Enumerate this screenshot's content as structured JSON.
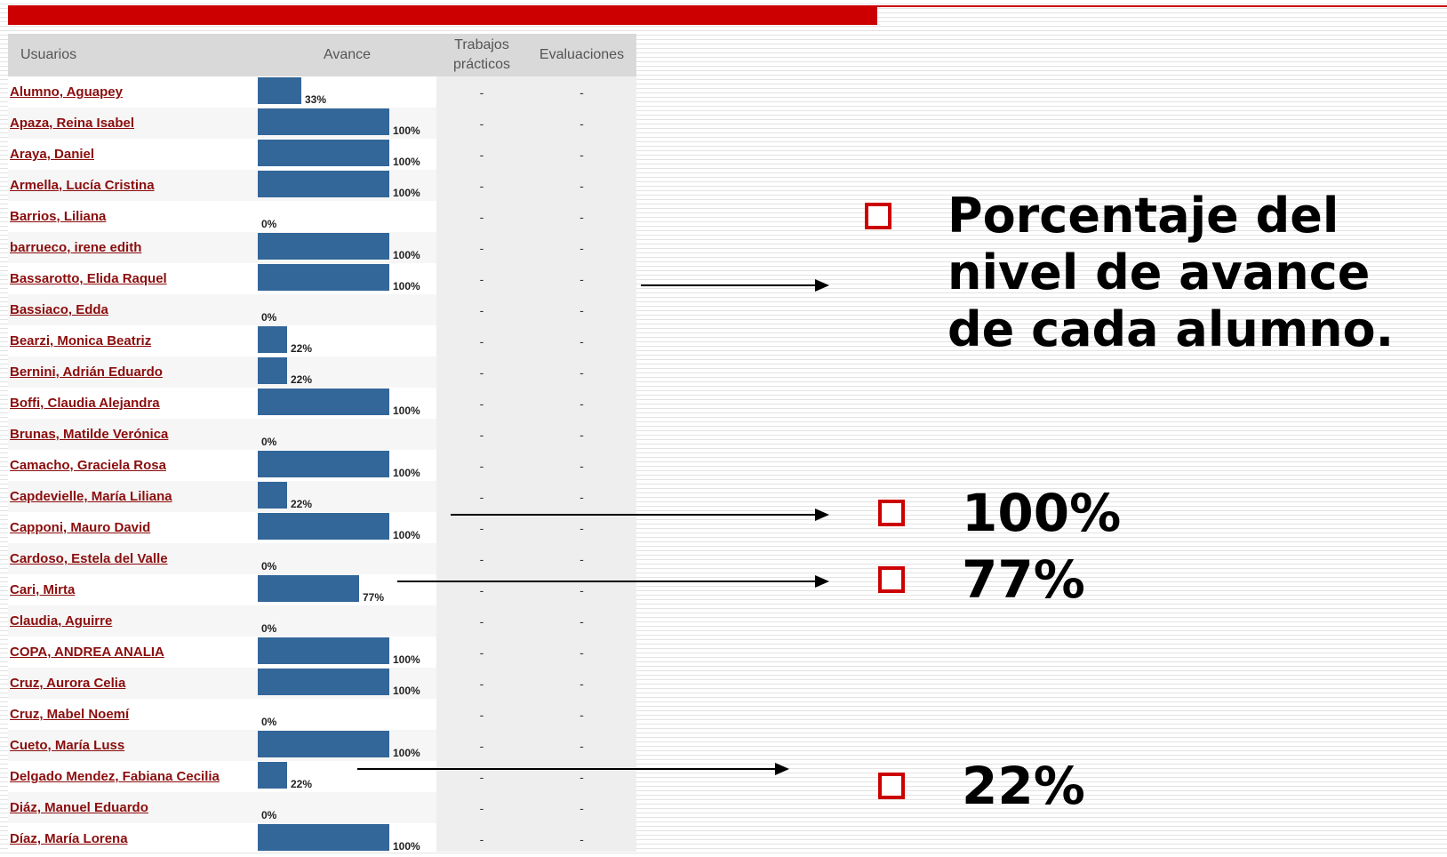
{
  "header": {
    "col_usuarios": "Usuarios",
    "col_avance": "Avance",
    "col_trabajos_1": "Trabajos",
    "col_trabajos_2": "prácticos",
    "col_evaluaciones": "Evaluaciones"
  },
  "rows": [
    {
      "name": "Alumno, Aguapey",
      "progress": 33,
      "pct_label": "33%",
      "tp": "-",
      "ev": "-"
    },
    {
      "name": "Apaza, Reina Isabel",
      "progress": 100,
      "pct_label": "100%",
      "tp": "-",
      "ev": "-"
    },
    {
      "name": "Araya, Daniel",
      "progress": 100,
      "pct_label": "100%",
      "tp": "-",
      "ev": "-"
    },
    {
      "name": "Armella, Lucía Cristina",
      "progress": 100,
      "pct_label": "100%",
      "tp": "-",
      "ev": "-"
    },
    {
      "name": "Barrios, Liliana",
      "progress": 0,
      "pct_label": "0%",
      "tp": "-",
      "ev": "-"
    },
    {
      "name": "barrueco, irene edith",
      "progress": 100,
      "pct_label": "100%",
      "tp": "-",
      "ev": "-"
    },
    {
      "name": "Bassarotto, Elida Raquel",
      "progress": 100,
      "pct_label": "100%",
      "tp": "-",
      "ev": "-"
    },
    {
      "name": "Bassiaco, Edda",
      "progress": 0,
      "pct_label": "0%",
      "tp": "-",
      "ev": "-"
    },
    {
      "name": "Bearzi, Monica Beatriz",
      "progress": 22,
      "pct_label": "22%",
      "tp": "-",
      "ev": "-"
    },
    {
      "name": "Bernini, Adrián Eduardo",
      "progress": 22,
      "pct_label": "22%",
      "tp": "-",
      "ev": "-"
    },
    {
      "name": "Boffi, Claudia Alejandra",
      "progress": 100,
      "pct_label": "100%",
      "tp": "-",
      "ev": "-"
    },
    {
      "name": "Brunas, Matilde Verónica",
      "progress": 0,
      "pct_label": "0%",
      "tp": "-",
      "ev": "-"
    },
    {
      "name": "Camacho, Graciela Rosa",
      "progress": 100,
      "pct_label": "100%",
      "tp": "-",
      "ev": "-"
    },
    {
      "name": "Capdevielle, María Liliana",
      "progress": 22,
      "pct_label": "22%",
      "tp": "-",
      "ev": "-"
    },
    {
      "name": "Capponi, Mauro David",
      "progress": 100,
      "pct_label": "100%",
      "tp": "-",
      "ev": "-"
    },
    {
      "name": "Cardoso, Estela del Valle",
      "progress": 0,
      "pct_label": "0%",
      "tp": "-",
      "ev": "-"
    },
    {
      "name": "Cari, Mirta",
      "progress": 77,
      "pct_label": "77%",
      "tp": "-",
      "ev": "-"
    },
    {
      "name": "Claudia, Aguirre",
      "progress": 0,
      "pct_label": "0%",
      "tp": "-",
      "ev": "-"
    },
    {
      "name": "COPA, ANDREA ANALIA",
      "progress": 100,
      "pct_label": "100%",
      "tp": "-",
      "ev": "-"
    },
    {
      "name": "Cruz, Aurora Celia",
      "progress": 100,
      "pct_label": "100%",
      "tp": "-",
      "ev": "-"
    },
    {
      "name": "Cruz, Mabel Noemí",
      "progress": 0,
      "pct_label": "0%",
      "tp": "-",
      "ev": "-"
    },
    {
      "name": "Cueto, María Luss",
      "progress": 100,
      "pct_label": "100%",
      "tp": "-",
      "ev": "-"
    },
    {
      "name": "Delgado Mendez, Fabiana Cecilia",
      "progress": 22,
      "pct_label": "22%",
      "tp": "-",
      "ev": "-"
    },
    {
      "name": "Diáz, Manuel Eduardo",
      "progress": 0,
      "pct_label": "0%",
      "tp": "-",
      "ev": "-"
    },
    {
      "name": "Díaz, María Lorena",
      "progress": 100,
      "pct_label": "100%",
      "tp": "-",
      "ev": "-"
    }
  ],
  "annotations": {
    "description": "Porcentaje del nivel de avance de cada alumno.",
    "pct_100": "100%",
    "pct_77": "77%",
    "pct_22": "22%"
  },
  "colors": {
    "bar": "#336699",
    "accent_red": "#cc0000",
    "link": "#8b0d0d"
  }
}
